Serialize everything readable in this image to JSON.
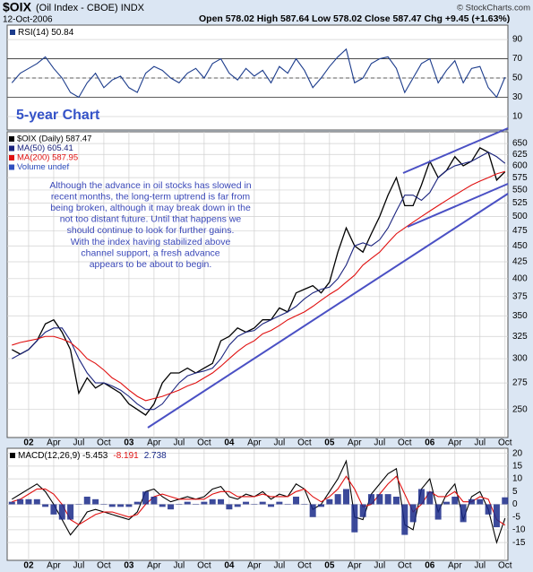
{
  "header": {
    "symbol": "$OIX",
    "name": "(Oil Index - CBOE) INDX",
    "date": "12-Oct-2006",
    "quote": "Open 578.02 High 587.64 Low 578.02 Close 587.47 Chg +9.45 (+1.63%)",
    "source": "© StockCharts.com"
  },
  "chart_data": [
    {
      "type": "line",
      "title": "RSI(14) 50.84",
      "annotation": "5-year Chart",
      "ylim": [
        -4,
        105
      ],
      "yticks": [
        10,
        30,
        50,
        70,
        90
      ],
      "levels": [
        30,
        70
      ],
      "midline": 50,
      "grid": true,
      "series": [
        {
          "name": "RSI(14)",
          "color": "#1c3c8c",
          "values": [
            45,
            55,
            60,
            65,
            72,
            60,
            50,
            35,
            30,
            45,
            55,
            40,
            48,
            52,
            40,
            35,
            55,
            62,
            58,
            50,
            45,
            55,
            60,
            50,
            65,
            70,
            55,
            48,
            60,
            52,
            58,
            45,
            62,
            55,
            70,
            58,
            40,
            50,
            62,
            72,
            80,
            45,
            50,
            65,
            70,
            72,
            60,
            35,
            50,
            65,
            70,
            45,
            58,
            68,
            45,
            60,
            62,
            40,
            30,
            50.84
          ]
        }
      ]
    },
    {
      "type": "line",
      "log_scale": true,
      "grid": true,
      "categories": [
        null,
        null,
        "02",
        null,
        null,
        "Apr",
        null,
        null,
        "Jul",
        null,
        null,
        "Oct",
        null,
        null,
        "03",
        null,
        null,
        "Apr",
        null,
        null,
        "Jul",
        null,
        null,
        "Oct",
        null,
        null,
        "04",
        null,
        null,
        "Apr",
        null,
        null,
        "Jul",
        null,
        null,
        "Oct",
        null,
        null,
        "05",
        null,
        null,
        "Apr",
        null,
        null,
        "Jul",
        null,
        null,
        "Oct",
        null,
        null,
        "06",
        null,
        null,
        "Apr",
        null,
        null,
        "Jul",
        null,
        null,
        "Oct"
      ],
      "ylim": [
        226,
        678
      ],
      "yticks": [
        250,
        275,
        300,
        325,
        350,
        375,
        400,
        425,
        450,
        475,
        500,
        525,
        550,
        575,
        600,
        625,
        650
      ],
      "volume_label": "Volume undef",
      "annotation_lines": [
        "Although the advance in oil stocks has slowed in",
        "recent months, the long-term uptrend is far from",
        "being broken, although it may break down in the",
        "not too distant future. Until that happens we",
        "should continue to look for further gains.",
        "With the index having stabilized above",
        "channel support, a fresh advance",
        "appears to be about to begin."
      ],
      "series": [
        {
          "name": "$OIX (Daily) 587.47",
          "color": "#000000",
          "values": [
            310,
            305,
            310,
            320,
            340,
            345,
            330,
            310,
            265,
            280,
            270,
            275,
            270,
            265,
            255,
            250,
            245,
            255,
            275,
            285,
            285,
            290,
            285,
            290,
            295,
            320,
            325,
            335,
            330,
            335,
            345,
            345,
            360,
            355,
            380,
            385,
            390,
            380,
            395,
            440,
            480,
            450,
            440,
            470,
            500,
            540,
            575,
            520,
            520,
            560,
            610,
            575,
            590,
            620,
            600,
            610,
            640,
            630,
            570,
            587.47
          ]
        },
        {
          "name": "MA(50) 605.41",
          "color": "#1a237e",
          "values": [
            300,
            305,
            310,
            320,
            330,
            335,
            335,
            320,
            300,
            285,
            275,
            275,
            272,
            268,
            262,
            255,
            250,
            250,
            255,
            265,
            275,
            282,
            285,
            287,
            290,
            300,
            315,
            325,
            330,
            332,
            340,
            345,
            350,
            355,
            362,
            372,
            380,
            385,
            388,
            400,
            420,
            450,
            455,
            450,
            460,
            480,
            510,
            540,
            540,
            530,
            545,
            575,
            590,
            600,
            605,
            610,
            620,
            630,
            620,
            605.41
          ]
        },
        {
          "name": "MA(200) 587.95",
          "color": "#e01010",
          "values": [
            315,
            318,
            320,
            322,
            325,
            325,
            322,
            318,
            310,
            300,
            295,
            288,
            280,
            275,
            268,
            262,
            258,
            260,
            262,
            265,
            268,
            272,
            275,
            280,
            285,
            292,
            300,
            308,
            315,
            320,
            328,
            332,
            338,
            345,
            350,
            355,
            362,
            370,
            378,
            385,
            395,
            405,
            420,
            430,
            440,
            455,
            470,
            480,
            490,
            500,
            510,
            520,
            530,
            540,
            550,
            560,
            568,
            575,
            583,
            587.95
          ]
        }
      ]
    },
    {
      "type": "line",
      "title": "MACD(12,26,9)",
      "grid": true,
      "categories": [
        null,
        null,
        "02",
        null,
        null,
        "Apr",
        null,
        null,
        "Jul",
        null,
        null,
        "Oct",
        null,
        null,
        "03",
        null,
        null,
        "Apr",
        null,
        null,
        "Jul",
        null,
        null,
        "Oct",
        null,
        null,
        "04",
        null,
        null,
        "Apr",
        null,
        null,
        "Jul",
        null,
        null,
        "Oct",
        null,
        null,
        "05",
        null,
        null,
        "Apr",
        null,
        null,
        "Jul",
        null,
        null,
        "Oct",
        null,
        null,
        "06",
        null,
        null,
        "Apr",
        null,
        null,
        "Jul",
        null,
        null,
        "Oct"
      ],
      "ylim": [
        -22,
        22
      ],
      "yticks": [
        -15,
        -10,
        -5,
        0,
        5,
        10,
        15,
        20
      ],
      "series": [
        {
          "name": "-5.453",
          "color": "#000000",
          "values": [
            2,
            4,
            6,
            8,
            5,
            0,
            -6,
            -12,
            -8,
            -3,
            -2,
            -3,
            -4,
            -5,
            -6,
            -3,
            5,
            6,
            3,
            1,
            2,
            3,
            2,
            3,
            6,
            7,
            3,
            2,
            4,
            3,
            5,
            2,
            4,
            3,
            8,
            6,
            -2,
            0,
            5,
            10,
            17,
            -5,
            -6,
            4,
            8,
            12,
            14,
            -8,
            -10,
            6,
            10,
            -3,
            4,
            8,
            -6,
            3,
            5,
            -2,
            -15,
            -5.453
          ]
        },
        {
          "name": "-8.191",
          "color": "#e01010",
          "values": [
            1,
            2,
            4,
            6,
            6,
            4,
            0,
            -6,
            -8,
            -6,
            -4,
            -3,
            -3,
            -4,
            -5,
            -4,
            0,
            3,
            4,
            3,
            2,
            2,
            2,
            2,
            4,
            5,
            5,
            3,
            3,
            3,
            4,
            3,
            3,
            3,
            5,
            6,
            3,
            1,
            3,
            6,
            11,
            6,
            -1,
            0,
            4,
            8,
            11,
            4,
            -3,
            0,
            5,
            3,
            3,
            5,
            1,
            1,
            3,
            2,
            -6,
            -8.191
          ]
        },
        {
          "name": "2.738",
          "color": "#1a2a8a",
          "kind": "histogram",
          "values": [
            1,
            2,
            2,
            2,
            -1,
            -4,
            -6,
            -6,
            0,
            3,
            2,
            0,
            -1,
            -1,
            -1,
            1,
            5,
            3,
            -1,
            -2,
            0,
            1,
            0,
            1,
            2,
            2,
            -2,
            -1,
            1,
            0,
            1,
            -1,
            1,
            0,
            3,
            0,
            -5,
            -1,
            2,
            4,
            6,
            -11,
            -5,
            4,
            4,
            4,
            3,
            -12,
            -7,
            6,
            5,
            -6,
            1,
            3,
            -7,
            2,
            2,
            -4,
            -9,
            2.738
          ]
        }
      ]
    }
  ]
}
